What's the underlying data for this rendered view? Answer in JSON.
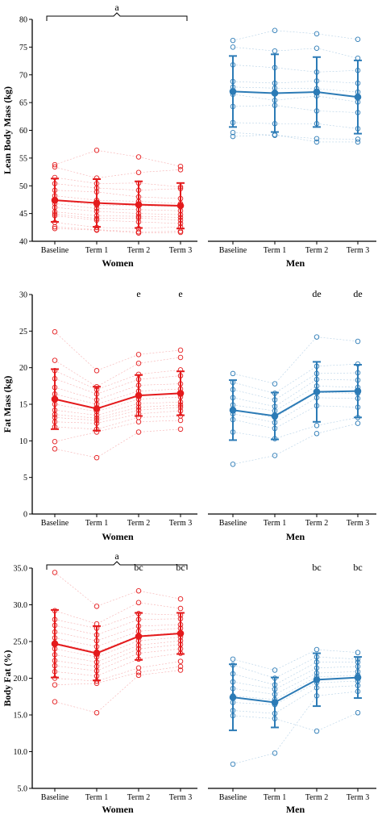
{
  "colors": {
    "women": "#e41a1c",
    "men": "#2c7bb6"
  },
  "categories": [
    "Baseline",
    "Term 1",
    "Term 2",
    "Term 3"
  ],
  "chart_data": [
    {
      "type": "line",
      "ylabel": "Lean Body Mass (kg)",
      "ylim": [
        40,
        80
      ],
      "yticks": [
        "40",
        "45",
        "50",
        "55",
        "60",
        "65",
        "70",
        "75",
        "80"
      ],
      "categories": [
        "Baseline",
        "Term 1",
        "Term 2",
        "Term 3"
      ],
      "groups": [
        {
          "label": "Women",
          "color": "#e41a1c",
          "mean": [
            47.4,
            46.9,
            46.6,
            46.4
          ],
          "sd": [
            3.9,
            4.3,
            4.2,
            4.1
          ],
          "individuals": [
            [
              53.8,
              56.4,
              55.2,
              53.5
            ],
            [
              53.4,
              51.4,
              52.4,
              52.9
            ],
            [
              51.5,
              50.4,
              50.5,
              49.8
            ],
            [
              50.4,
              49.6,
              49.2,
              49.5
            ],
            [
              49.2,
              48.9,
              48.0,
              47.7
            ],
            [
              48.2,
              47.4,
              47.2,
              46.8
            ],
            [
              47.4,
              46.5,
              46.4,
              46.3
            ],
            [
              46.8,
              45.9,
              45.7,
              45.5
            ],
            [
              46.1,
              45.4,
              45.0,
              44.8
            ],
            [
              45.3,
              44.6,
              44.5,
              44.3
            ],
            [
              44.9,
              44.1,
              44.2,
              43.8
            ],
            [
              44.6,
              43.8,
              43.5,
              43.2
            ],
            [
              43.4,
              42.5,
              42.3,
              42.6
            ],
            [
              42.6,
              42.1,
              41.7,
              41.8
            ],
            [
              42.3,
              42.0,
              41.5,
              41.6
            ]
          ]
        },
        {
          "label": "Men",
          "color": "#2c7bb6",
          "mean": [
            67.0,
            66.7,
            66.9,
            66.0
          ],
          "sd": [
            6.4,
            7.0,
            6.3,
            6.6
          ],
          "individuals": [
            [
              76.2,
              78.0,
              77.4,
              76.4
            ],
            [
              75.0,
              74.3,
              74.8,
              73.0
            ],
            [
              71.8,
              71.3,
              70.5,
              70.8
            ],
            [
              68.8,
              68.5,
              68.9,
              68.5
            ],
            [
              67.8,
              67.6,
              67.5,
              66.9
            ],
            [
              66.5,
              65.4,
              66.2,
              65.1
            ],
            [
              64.3,
              64.5,
              63.5,
              63.2
            ],
            [
              61.4,
              61.2,
              61.2,
              60.3
            ],
            [
              59.6,
              59.1,
              58.5,
              58.4
            ],
            [
              58.9,
              59.2,
              57.9,
              57.9
            ]
          ]
        }
      ],
      "annotations": [
        {
          "text": "a",
          "span": "Women",
          "group": "Women",
          "bracket": true
        }
      ]
    },
    {
      "type": "line",
      "ylabel": "Fat Mass (kg)",
      "ylim": [
        0,
        30
      ],
      "yticks": [
        "0",
        "5",
        "10",
        "15",
        "20",
        "25",
        "30"
      ],
      "categories": [
        "Baseline",
        "Term 1",
        "Term 2",
        "Term 3"
      ],
      "groups": [
        {
          "label": "Women",
          "color": "#e41a1c",
          "mean": [
            15.7,
            14.4,
            16.2,
            16.5
          ],
          "sd": [
            4.1,
            3.0,
            2.8,
            3.0
          ],
          "individuals": [
            [
              24.9,
              19.6,
              21.8,
              22.4
            ],
            [
              21.0,
              17.4,
              20.6,
              21.4
            ],
            [
              19.6,
              17.0,
              19.1,
              19.7
            ],
            [
              18.5,
              16.4,
              18.4,
              18.9
            ],
            [
              17.3,
              15.6,
              17.6,
              17.8
            ],
            [
              16.4,
              15.0,
              16.8,
              17.1
            ],
            [
              15.7,
              14.5,
              16.3,
              16.4
            ],
            [
              15.0,
              14.0,
              15.7,
              16.0
            ],
            [
              14.2,
              13.5,
              15.1,
              15.3
            ],
            [
              13.6,
              13.1,
              14.6,
              14.9
            ],
            [
              13.2,
              12.8,
              14.2,
              14.6
            ],
            [
              12.6,
              12.4,
              13.7,
              14.1
            ],
            [
              11.9,
              11.6,
              13.2,
              13.4
            ],
            [
              9.9,
              11.2,
              12.6,
              12.8
            ],
            [
              8.9,
              7.7,
              11.2,
              11.6
            ]
          ]
        },
        {
          "label": "Men",
          "color": "#2c7bb6",
          "mean": [
            14.2,
            13.4,
            16.7,
            16.8
          ],
          "sd": [
            4.1,
            3.2,
            4.1,
            3.6
          ],
          "individuals": [
            [
              19.2,
              17.8,
              24.2,
              23.6
            ],
            [
              18.0,
              16.5,
              20.2,
              20.5
            ],
            [
              17.0,
              15.6,
              19.2,
              19.3
            ],
            [
              15.9,
              14.7,
              18.4,
              18.3
            ],
            [
              14.9,
              14.1,
              17.5,
              17.3
            ],
            [
              14.2,
              13.2,
              16.6,
              16.5
            ],
            [
              13.7,
              12.5,
              15.9,
              15.8
            ],
            [
              12.9,
              11.7,
              14.8,
              14.6
            ],
            [
              11.2,
              10.3,
              12.1,
              13.2
            ],
            [
              6.8,
              8.0,
              11.0,
              12.4
            ]
          ]
        }
      ],
      "annotations": [
        {
          "text": "e",
          "group": "Women",
          "category": "Term 2"
        },
        {
          "text": "e",
          "group": "Women",
          "category": "Term 3"
        },
        {
          "text": "de",
          "group": "Men",
          "category": "Term 2"
        },
        {
          "text": "de",
          "group": "Men",
          "category": "Term 3"
        }
      ]
    },
    {
      "type": "line",
      "ylabel": "Body Fat (%)",
      "ylim": [
        5,
        35
      ],
      "yticks": [
        "5.0",
        "10.0",
        "15.0",
        "20.0",
        "25.0",
        "30.0",
        "35.0"
      ],
      "categories": [
        "Baseline",
        "Term 1",
        "Term 2",
        "Term 3"
      ],
      "groups": [
        {
          "label": "Women",
          "color": "#e41a1c",
          "mean": [
            24.7,
            23.4,
            25.7,
            26.1
          ],
          "sd": [
            4.6,
            3.7,
            3.2,
            2.8
          ],
          "individuals": [
            [
              34.4,
              29.8,
              31.9,
              30.8
            ],
            [
              29.2,
              27.4,
              30.3,
              29.5
            ],
            [
              28.0,
              26.8,
              28.8,
              28.6
            ],
            [
              27.2,
              25.9,
              28.0,
              28.1
            ],
            [
              26.3,
              25.1,
              27.1,
              27.3
            ],
            [
              25.5,
              24.3,
              26.4,
              26.8
            ],
            [
              24.8,
              23.6,
              25.8,
              26.2
            ],
            [
              24.0,
              22.9,
              25.1,
              25.6
            ],
            [
              23.2,
              22.2,
              24.5,
              25.1
            ],
            [
              22.4,
              21.6,
              24.0,
              24.6
            ],
            [
              21.7,
              21.0,
              23.4,
              24.0
            ],
            [
              20.9,
              20.3,
              22.6,
              23.4
            ],
            [
              20.0,
              19.6,
              21.4,
              22.3
            ],
            [
              19.1,
              19.3,
              20.8,
              21.6
            ],
            [
              16.8,
              15.3,
              20.4,
              21.1
            ]
          ]
        },
        {
          "label": "Men",
          "color": "#2c7bb6",
          "mean": [
            17.4,
            16.7,
            19.8,
            20.1
          ],
          "sd": [
            4.5,
            3.4,
            3.6,
            2.8
          ],
          "individuals": [
            [
              22.6,
              21.1,
              23.9,
              23.5
            ],
            [
              21.8,
              20.0,
              22.9,
              22.6
            ],
            [
              20.6,
              19.1,
              22.2,
              22.2
            ],
            [
              19.5,
              18.5,
              21.4,
              21.6
            ],
            [
              18.6,
              17.8,
              20.7,
              20.9
            ],
            [
              17.6,
              17.1,
              20.2,
              20.4
            ],
            [
              16.7,
              16.4,
              19.4,
              19.6
            ],
            [
              15.6,
              15.2,
              18.7,
              19.0
            ],
            [
              14.9,
              14.5,
              12.8,
              15.3
            ],
            [
              8.3,
              9.8,
              17.6,
              18.2
            ]
          ]
        }
      ],
      "annotations": [
        {
          "text": "a",
          "span": "Women",
          "group": "Women",
          "bracket": true
        },
        {
          "text": "bc",
          "group": "Women",
          "category": "Term 2"
        },
        {
          "text": "bc",
          "group": "Women",
          "category": "Term 3"
        },
        {
          "text": "bc",
          "group": "Men",
          "category": "Term 2"
        },
        {
          "text": "bc",
          "group": "Men",
          "category": "Term 3"
        }
      ]
    }
  ]
}
